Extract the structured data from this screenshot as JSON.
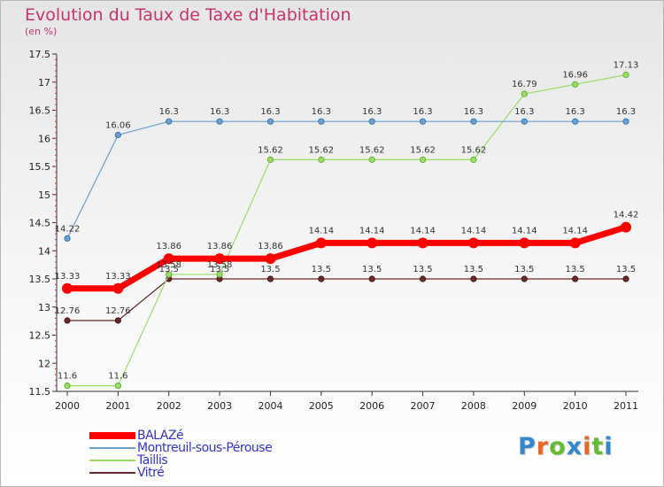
{
  "chart_data": {
    "type": "line",
    "title": "Evolution du Taux de Taxe d'Habitation",
    "subtitle": "(en %)",
    "x": [
      "2000",
      "2001",
      "2002",
      "2003",
      "2004",
      "2005",
      "2006",
      "2007",
      "2008",
      "2009",
      "2010",
      "2011"
    ],
    "yticks": [
      "11.5",
      "12",
      "12.5",
      "13",
      "13.5",
      "14",
      "14.5",
      "15",
      "15.5",
      "16",
      "16.5",
      "17",
      "17.5"
    ],
    "ylim": [
      11.5,
      17.5
    ],
    "grid": false,
    "legend_position": "bottom-left",
    "series": [
      {
        "name": "BALAZé",
        "color": "#ff0000",
        "values": [
          13.33,
          13.33,
          13.86,
          13.86,
          13.86,
          14.14,
          14.14,
          14.14,
          14.14,
          14.14,
          14.14,
          14.42
        ],
        "labels": [
          "13.33",
          "13.33",
          "13.86",
          "13.86",
          "13.86",
          "14.14",
          "14.14",
          "14.14",
          "14.14",
          "14.14",
          "14.14",
          "14.42"
        ]
      },
      {
        "name": "Montreuil-sous-Pérouse",
        "color": "#6a9fd0",
        "values": [
          14.22,
          16.06,
          16.3,
          16.3,
          16.3,
          16.3,
          16.3,
          16.3,
          16.3,
          16.3,
          16.3,
          16.3
        ],
        "labels": [
          "14.22",
          "16.06",
          "16.3",
          "16.3",
          "16.3",
          "16.3",
          "16.3",
          "16.3",
          "16.3",
          "16.3",
          "16.3",
          "16.3"
        ]
      },
      {
        "name": "Taillis",
        "color": "#99dd66",
        "values": [
          11.6,
          11.6,
          13.58,
          13.58,
          15.62,
          15.62,
          15.62,
          15.62,
          15.62,
          16.79,
          16.96,
          17.13
        ],
        "labels": [
          "11.6",
          "11.6",
          "13.58",
          "13.58",
          "15.62",
          "15.62",
          "15.62",
          "15.62",
          "15.62",
          "16.79",
          "16.96",
          "17.13"
        ]
      },
      {
        "name": "Vitré",
        "color": "#6b2a2a",
        "values": [
          12.76,
          12.76,
          13.5,
          13.5,
          13.5,
          13.5,
          13.5,
          13.5,
          13.5,
          13.5,
          13.5,
          13.5
        ],
        "labels": [
          "12.76",
          "12.76",
          "13.5",
          "13.5",
          "13.5",
          "13.5",
          "13.5",
          "13.5",
          "13.5",
          "13.5",
          "13.5",
          "13.5"
        ]
      }
    ]
  },
  "brand": {
    "letters": [
      {
        "ch": "P",
        "color": "#3388cc"
      },
      {
        "ch": "r",
        "color": "#ee6622"
      },
      {
        "ch": "o",
        "color": "#66bb33"
      },
      {
        "ch": "x",
        "color": "#3388cc"
      },
      {
        "ch": "i",
        "color": "#ee6622"
      },
      {
        "ch": "t",
        "color": "#66bb33"
      },
      {
        "ch": "i",
        "color": "#3388cc"
      }
    ]
  }
}
